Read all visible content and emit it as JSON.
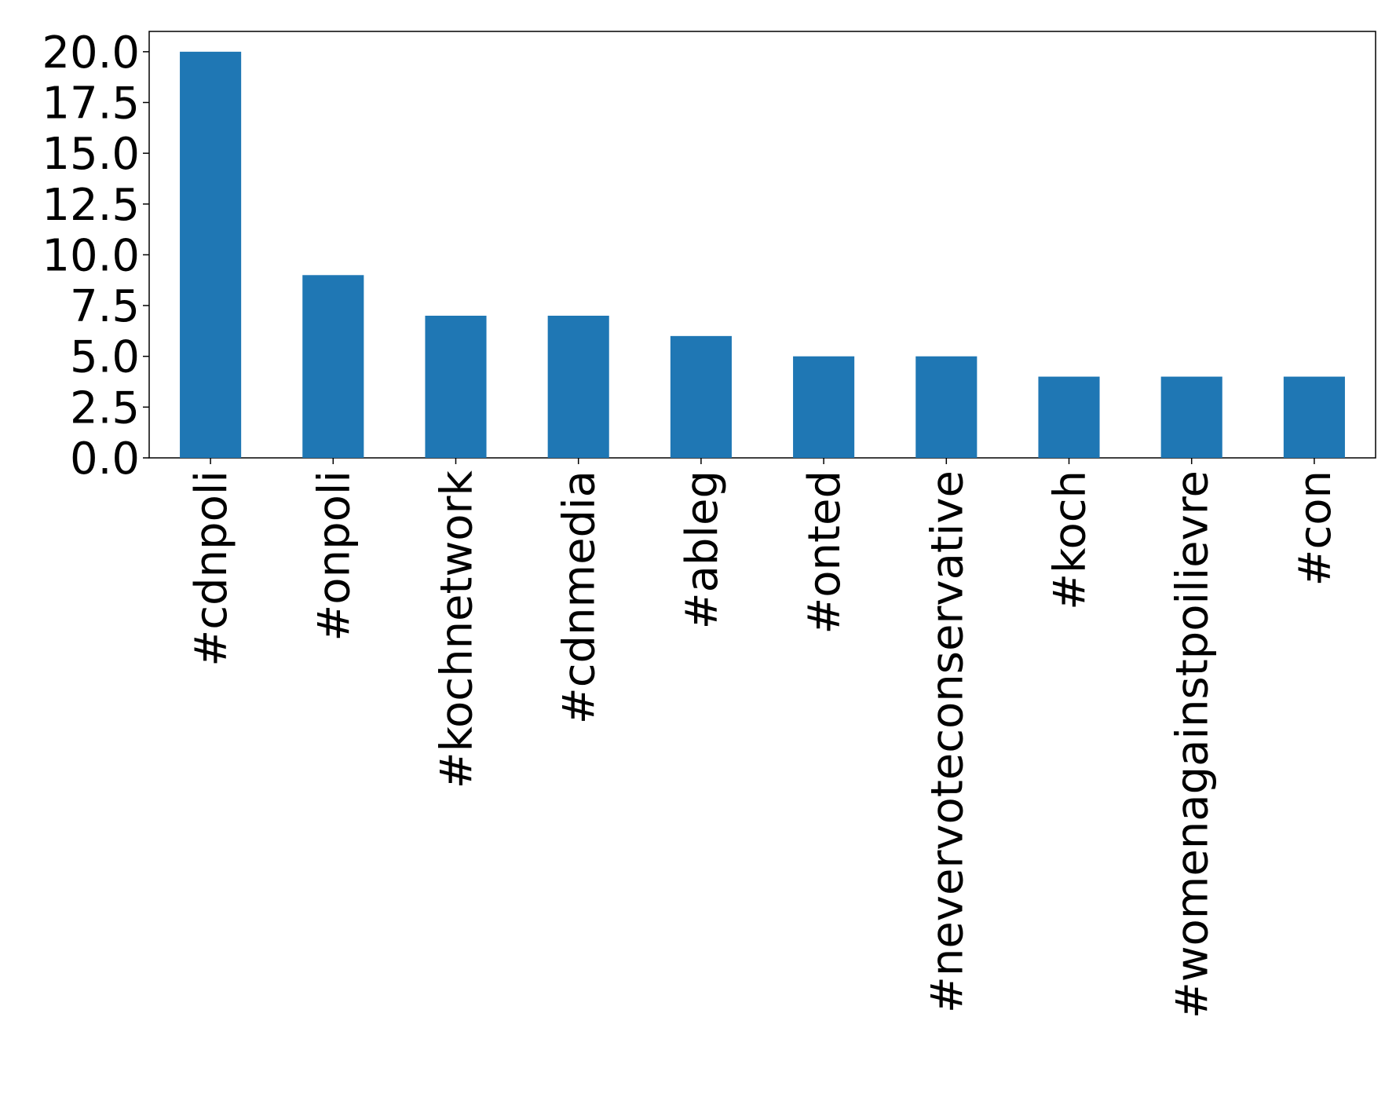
{
  "chart_data": {
    "type": "bar",
    "categories": [
      "#cdnpoli",
      "#onpoli",
      "#kochnetwork",
      "#cdnmedia",
      "#ableg",
      "#onted",
      "#nevervoteconservative",
      "#koch",
      "#womenagainstpoilievre",
      "#con"
    ],
    "values": [
      20,
      9,
      7,
      7,
      6,
      5,
      5,
      4,
      4,
      4
    ],
    "color": "#1f77b4",
    "ylim": [
      0,
      21
    ],
    "yticks": [
      {
        "value": 0,
        "label": "0.0"
      },
      {
        "value": 2.5,
        "label": "2.5"
      },
      {
        "value": 5,
        "label": "5.0"
      },
      {
        "value": 7.5,
        "label": "7.5"
      },
      {
        "value": 10,
        "label": "10.0"
      },
      {
        "value": 12.5,
        "label": "12.5"
      },
      {
        "value": 15,
        "label": "15.0"
      },
      {
        "value": 17.5,
        "label": "17.5"
      },
      {
        "value": 20,
        "label": "20.0"
      }
    ],
    "grid": false
  }
}
